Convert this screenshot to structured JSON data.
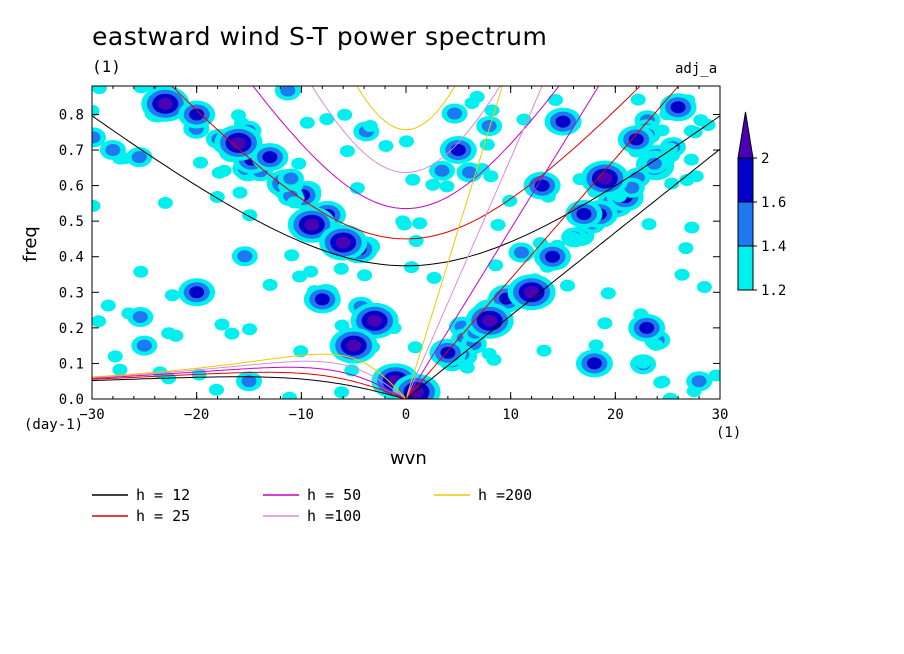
{
  "header": {
    "title": "eastward wind S-T power spectrum",
    "subtitle": "(1)",
    "tag": "adj_a"
  },
  "axes": {
    "x_unit": "(1)",
    "y_unit": "(day-1)"
  },
  "colors": {
    "level_1_2": "#00f0f0",
    "level_1_4": "#1e78f0",
    "level_1_6": "#0000c8",
    "level_2": "#4b00b4",
    "h12": "#000000",
    "h25": "#e00000",
    "h50": "#c800c8",
    "h100": "#d78cd7",
    "h200": "#f0c800"
  },
  "chart_data": {
    "type": "heatmap",
    "title": "eastward wind S-T power spectrum",
    "xlabel": "wvn",
    "ylabel": "freq",
    "xlim": [
      -30,
      30
    ],
    "ylim": [
      0,
      0.88
    ],
    "x_ticks": [
      -30,
      -20,
      -10,
      0,
      10,
      20,
      30
    ],
    "y_ticks": [
      0.0,
      0.1,
      0.2,
      0.3,
      0.4,
      0.5,
      0.6,
      0.7,
      0.8
    ],
    "y_tick_labels": [
      "0.0",
      "0.1",
      "0.2",
      "0.3",
      "0.4",
      "0.5",
      "0.6",
      "0.7",
      "0.8"
    ],
    "colorbar": {
      "levels": [
        1.2,
        1.4,
        1.6,
        2
      ],
      "labels": [
        "1.2",
        "1.4",
        "1.6",
        "2"
      ]
    },
    "series": [
      {
        "name": "h = 12"
      },
      {
        "name": "h = 25"
      },
      {
        "name": "h = 50"
      },
      {
        "name": "h =100"
      },
      {
        "name": "h =200"
      }
    ],
    "equivalent_depths": [
      12,
      25,
      50,
      100,
      200
    ],
    "contour_clusters": [
      {
        "x": -23,
        "y": 0.83,
        "level": 4
      },
      {
        "x": -20,
        "y": 0.8,
        "level": 3
      },
      {
        "x": -16,
        "y": 0.72,
        "level": 4
      },
      {
        "x": -13,
        "y": 0.68,
        "level": 3
      },
      {
        "x": -11,
        "y": 0.62,
        "level": 2
      },
      {
        "x": -9,
        "y": 0.49,
        "level": 4
      },
      {
        "x": -6,
        "y": 0.44,
        "level": 4
      },
      {
        "x": -8,
        "y": 0.28,
        "level": 3
      },
      {
        "x": -3,
        "y": 0.22,
        "level": 4
      },
      {
        "x": -5,
        "y": 0.15,
        "level": 4
      },
      {
        "x": -1,
        "y": 0.05,
        "level": 4
      },
      {
        "x": 1,
        "y": 0.02,
        "level": 4
      },
      {
        "x": 4,
        "y": 0.13,
        "level": 3
      },
      {
        "x": 8,
        "y": 0.22,
        "level": 4
      },
      {
        "x": 12,
        "y": 0.3,
        "level": 4
      },
      {
        "x": 14,
        "y": 0.4,
        "level": 3
      },
      {
        "x": 17,
        "y": 0.52,
        "level": 3
      },
      {
        "x": 19,
        "y": 0.62,
        "level": 4
      },
      {
        "x": 22,
        "y": 0.73,
        "level": 3
      },
      {
        "x": 26,
        "y": 0.82,
        "level": 3
      },
      {
        "x": 13,
        "y": 0.6,
        "level": 3
      },
      {
        "x": 15,
        "y": 0.78,
        "level": 3
      },
      {
        "x": 5,
        "y": 0.7,
        "level": 3
      },
      {
        "x": -20,
        "y": 0.3,
        "level": 3
      },
      {
        "x": -25,
        "y": 0.15,
        "level": 2
      },
      {
        "x": 18,
        "y": 0.1,
        "level": 3
      },
      {
        "x": 23,
        "y": 0.2,
        "level": 3
      },
      {
        "x": -15,
        "y": 0.05,
        "level": 2
      },
      {
        "x": 28,
        "y": 0.05,
        "level": 2
      },
      {
        "x": -28,
        "y": 0.7,
        "level": 2
      }
    ]
  },
  "legend": {
    "items": [
      {
        "label": "h = 12",
        "color_key": "h12"
      },
      {
        "label": "h = 25",
        "color_key": "h25"
      },
      {
        "label": "h = 50",
        "color_key": "h50"
      },
      {
        "label": "h =100",
        "color_key": "h100"
      },
      {
        "label": "h =200",
        "color_key": "h200"
      }
    ]
  }
}
